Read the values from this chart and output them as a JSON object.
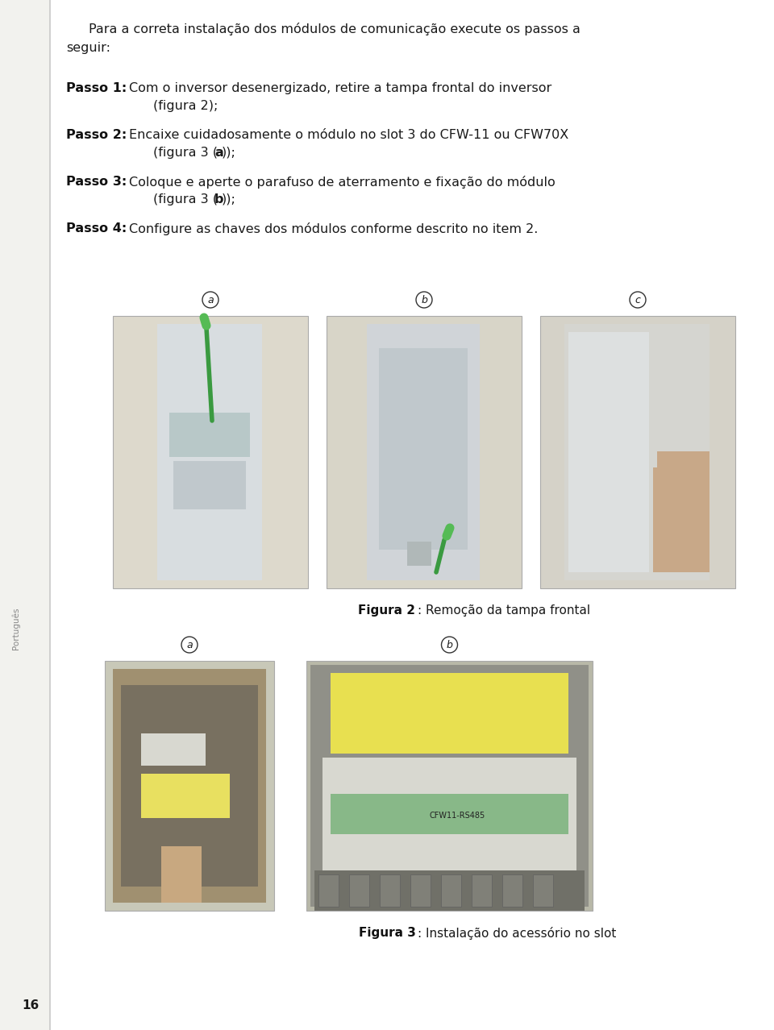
{
  "page_bg": "#ffffff",
  "text_color": "#1a1a1a",
  "sidebar_text": "Português",
  "page_number": "16",
  "fig2_caption_bold": "Figura 2",
  "fig2_caption_text": ": Remoção da tampa frontal",
  "fig3_caption_bold": "Figura 3",
  "fig3_caption_text": ": Instalação do acessório no slot",
  "img_bg_a": "#d4cfc0",
  "img_bg_b": "#d0ccc0",
  "img_bg_c": "#d8d5cc",
  "img3_bg_a": "#c8b890",
  "img3_bg_b": "#b8b8a8"
}
